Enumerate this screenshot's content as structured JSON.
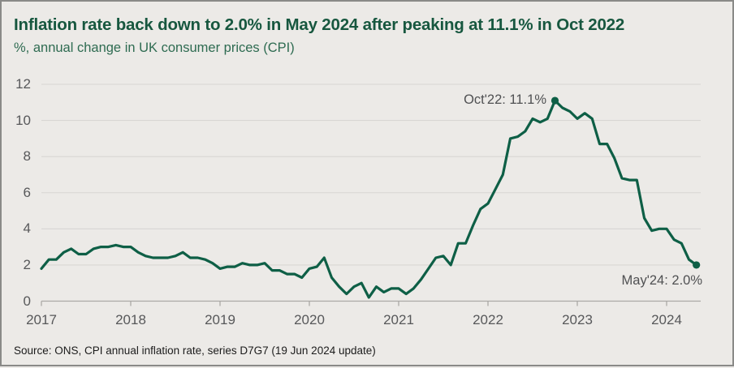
{
  "header": {
    "title": "Inflation rate back down to 2.0% in May 2024 after peaking at 11.1% in Oct 2022",
    "subtitle": "%, annual change in UK consumer prices (CPI)"
  },
  "footer": {
    "source": "Source: ONS, CPI annual inflation rate, series D7G7 (19 Jun 2024 update)"
  },
  "annotations": {
    "peak_label": "Oct'22: 11.1%",
    "latest_label": "May'24: 2.0%"
  },
  "colors": {
    "background": "#eceae7",
    "title_green": "#17573f",
    "subtitle_green": "#2e6b51",
    "line_green": "#0e5f46",
    "gridline": "#d8d6d3",
    "axis": "#aba9a6",
    "axis_text": "#57585a",
    "annotation_text": "#4f5052",
    "source_text": "#1c1c1c"
  },
  "chart_data": {
    "type": "line",
    "title": "Inflation rate back down to 2.0% in May 2024 after peaking at 11.1% in Oct 2022",
    "subtitle": "%, annual change in UK consumer prices (CPI)",
    "x_start": "2017-01",
    "x_end": "2024-05",
    "x_tick_labels": [
      "2017",
      "2018",
      "2019",
      "2020",
      "2021",
      "2022",
      "2023",
      "2024"
    ],
    "y_ticks": [
      0,
      2,
      4,
      6,
      8,
      10,
      12
    ],
    "ylim": [
      0,
      12
    ],
    "grid": "horizontal",
    "legend": "none",
    "series": [
      {
        "name": "CPI annual inflation rate (%)",
        "frequency": "monthly",
        "values": [
          1.8,
          2.3,
          2.3,
          2.7,
          2.9,
          2.6,
          2.6,
          2.9,
          3.0,
          3.0,
          3.1,
          3.0,
          3.0,
          2.7,
          2.5,
          2.4,
          2.4,
          2.4,
          2.5,
          2.7,
          2.4,
          2.4,
          2.3,
          2.1,
          1.8,
          1.9,
          1.9,
          2.1,
          2.0,
          2.0,
          2.1,
          1.7,
          1.7,
          1.5,
          1.5,
          1.3,
          1.8,
          1.9,
          2.4,
          1.3,
          0.8,
          0.4,
          0.8,
          1.0,
          0.2,
          0.8,
          0.5,
          0.7,
          0.7,
          0.4,
          0.7,
          1.2,
          1.8,
          2.4,
          2.5,
          2.0,
          3.2,
          3.2,
          4.2,
          5.1,
          5.4,
          6.2,
          7.0,
          9.0,
          9.1,
          9.4,
          10.1,
          9.9,
          10.1,
          11.1,
          10.7,
          10.5,
          10.1,
          10.4,
          10.1,
          8.7,
          8.7,
          7.9,
          6.8,
          6.7,
          6.7,
          4.6,
          3.9,
          4.0,
          4.0,
          3.4,
          3.2,
          2.3,
          2.0
        ]
      }
    ],
    "markers": [
      {
        "month": "Oct 2022",
        "value": 11.1,
        "label": "Oct'22: 11.1%"
      },
      {
        "month": "May 2024",
        "value": 2.0,
        "label": "May'24: 2.0%"
      }
    ]
  }
}
